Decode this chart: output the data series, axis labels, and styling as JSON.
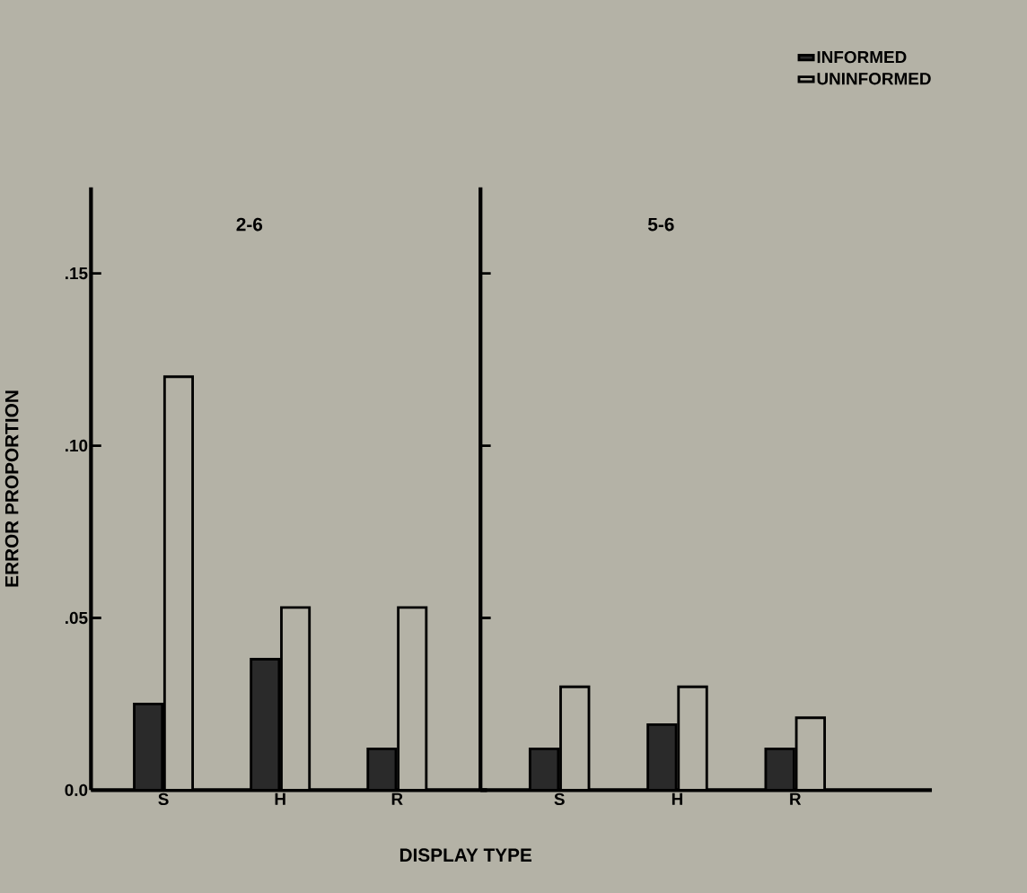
{
  "chart_data": [
    {
      "type": "bar",
      "title": "2-6",
      "xlabel": "DISPLAY TYPE",
      "ylabel": "ERROR PROPORTION",
      "categories": [
        "S",
        "H",
        "R"
      ],
      "series": [
        {
          "name": "INFORMED",
          "color": "#2a2a2a",
          "values": [
            0.025,
            0.038,
            0.012
          ]
        },
        {
          "name": "UNINFORMED",
          "color": "#b4b2a6",
          "values": [
            0.12,
            0.053,
            0.053
          ]
        }
      ],
      "ylim": [
        0,
        0.175
      ],
      "yticks": [
        {
          "value": 0,
          "label": "0.0"
        },
        {
          "value": 0.05,
          "label": ".05"
        },
        {
          "value": 0.1,
          "label": ".10"
        },
        {
          "value": 0.15,
          "label": ".15"
        }
      ],
      "legend": "top right"
    },
    {
      "type": "bar",
      "title": "5-6",
      "categories": [
        "S",
        "H",
        "R"
      ],
      "series": [
        {
          "color": "#2a2a2a",
          "values": [
            0.012,
            0.019,
            0.012
          ]
        },
        {
          "color": "#b4b2a6",
          "values": [
            0.03,
            0.03,
            0.021
          ]
        }
      ],
      "ylim": [
        0,
        0.175
      ],
      "yticks": [
        {
          "value": 0,
          "label": null
        },
        {
          "value": 0.05,
          "label": null
        },
        {
          "value": 0.1,
          "label": null
        },
        {
          "value": 0.15,
          "label": null
        }
      ],
      "tick_labels": "x"
    }
  ]
}
